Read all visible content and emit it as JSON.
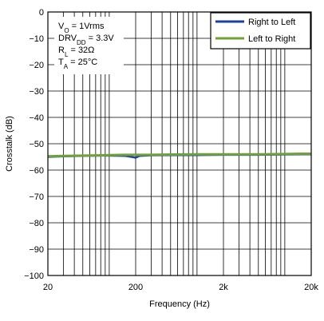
{
  "chart_data": {
    "type": "line",
    "title": "",
    "xlabel": "Frequency (Hz)",
    "ylabel": "Crosstalk (dB)",
    "x_scale": "log",
    "xlim": [
      20,
      20000
    ],
    "ylim": [
      -100,
      0
    ],
    "x_ticks": [
      {
        "value": 20,
        "label": "20"
      },
      {
        "value": 200,
        "label": "200"
      },
      {
        "value": 2000,
        "label": "2k"
      },
      {
        "value": 20000,
        "label": "20k"
      }
    ],
    "y_ticks": [
      0,
      -10,
      -20,
      -30,
      -40,
      -50,
      -60,
      -70,
      -80,
      -90,
      -100
    ],
    "y_tick_labels": [
      "0",
      "−10",
      "−20",
      "−30",
      "−40",
      "−50",
      "−60",
      "−70",
      "−80",
      "−90",
      "−100"
    ],
    "grid": true,
    "legend_position": "top-right",
    "series": [
      {
        "name": "Right to Left",
        "color": "#1f3fa8",
        "x": [
          20,
          30,
          50,
          80,
          100,
          150,
          180,
          200,
          220,
          300,
          500,
          1000,
          2000,
          5000,
          10000,
          15000,
          20000
        ],
        "y": [
          -55.0,
          -54.8,
          -54.6,
          -54.5,
          -54.5,
          -54.6,
          -55.0,
          -55.3,
          -54.6,
          -54.4,
          -54.3,
          -54.3,
          -54.2,
          -54.2,
          -54.1,
          -54.0,
          -54.0
        ]
      },
      {
        "name": "Left to Right",
        "color": "#6fa33a",
        "x": [
          20,
          30,
          50,
          80,
          100,
          150,
          200,
          300,
          500,
          1000,
          2000,
          5000,
          10000,
          15000,
          20000
        ],
        "y": [
          -54.8,
          -54.6,
          -54.5,
          -54.4,
          -54.3,
          -54.2,
          -54.2,
          -54.2,
          -54.1,
          -54.0,
          -54.0,
          -54.0,
          -53.9,
          -53.8,
          -53.8
        ]
      }
    ],
    "conditions": [
      {
        "main": "V",
        "sub": "O",
        "rest": " = 1Vrms"
      },
      {
        "main": "DRV",
        "sub": "DD",
        "rest": " = 3.3V"
      },
      {
        "main": "R",
        "sub": "L",
        "rest": " = 32Ω"
      },
      {
        "main": "T",
        "sub": "A",
        "rest": " = 25°C"
      }
    ]
  }
}
